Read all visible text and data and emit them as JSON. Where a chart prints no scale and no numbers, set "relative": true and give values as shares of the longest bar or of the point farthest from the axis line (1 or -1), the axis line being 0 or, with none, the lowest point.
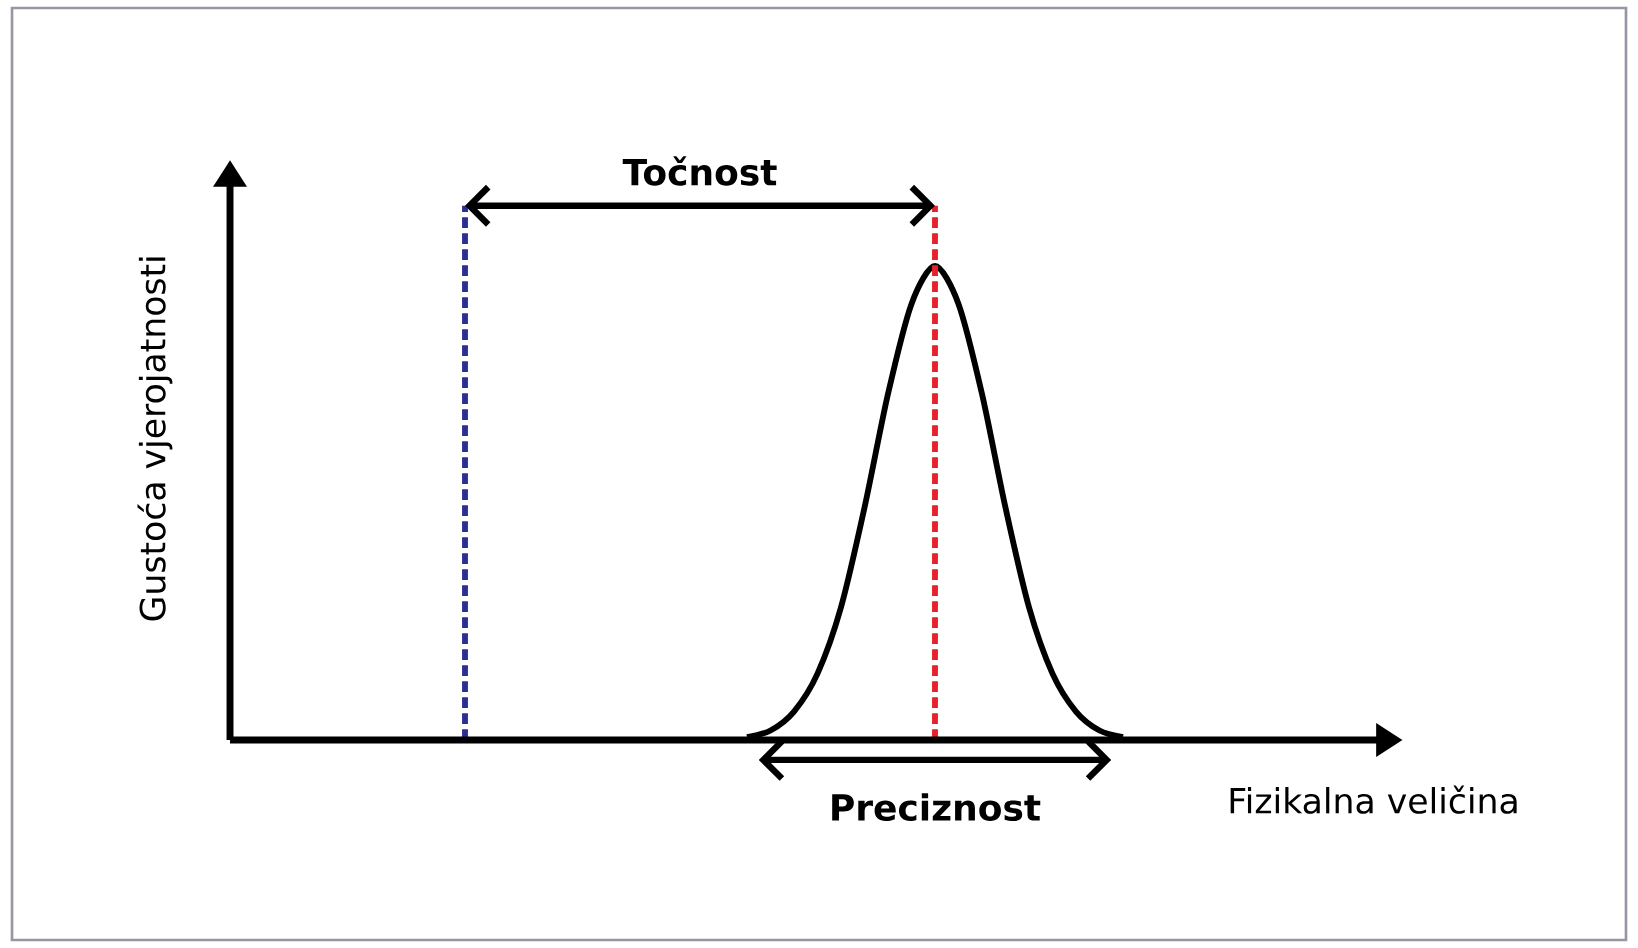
{
  "chart_data": {
    "type": "line",
    "relative": true,
    "xlabel": "Fizikalna veličina",
    "ylabel": "Gustoća vjerojatnosti",
    "categories": [
      null,
      null,
      null,
      null,
      null,
      null,
      null,
      null,
      null,
      null,
      null,
      null,
      null,
      null,
      null,
      null,
      null,
      null,
      null,
      null,
      null,
      null,
      null,
      null,
      null,
      null,
      null,
      null,
      null,
      null,
      null,
      null,
      null,
      null,
      null,
      null,
      null,
      null,
      null,
      null,
      null,
      null,
      null,
      null,
      null,
      null,
      null,
      null,
      null,
      null
    ],
    "series": [
      {
        "color": "#000000",
        "values": [
          null,
          null,
          null,
          null,
          null,
          null,
          null,
          null,
          null,
          null,
          null,
          null,
          null,
          null,
          null,
          null,
          null,
          null,
          null,
          null,
          null,
          null,
          0.006,
          0.02,
          0.06,
          0.14,
          0.28,
          0.49,
          0.73,
          0.92,
          1,
          0.92,
          0.73,
          0.49,
          0.28,
          0.14,
          0.06,
          0.02,
          0.006,
          null,
          null,
          null,
          null,
          null,
          null,
          null,
          null,
          null,
          null,
          null
        ]
      }
    ],
    "annotations": [
      "Točnost",
      "Preciznost"
    ],
    "marker": "none",
    "line_style": "solid"
  }
}
